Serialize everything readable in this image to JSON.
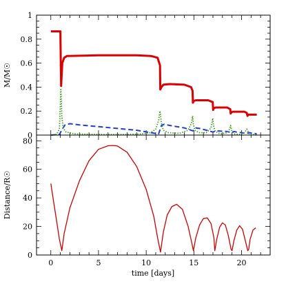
{
  "chart_data": [
    {
      "type": "line",
      "panel": "top",
      "ylabel": "M/M☉",
      "xlim": [
        -1.5,
        23
      ],
      "ylim": [
        0,
        1
      ],
      "yticks": [
        "0",
        "0.2",
        "0.4",
        "0.6",
        "0.8",
        "1"
      ],
      "grid": false,
      "legend": "none",
      "series": [
        {
          "color": "#dd0000",
          "style": "solid",
          "x": [
            0,
            1.0,
            1.01,
            1.08,
            1.2,
            1.4,
            1.7,
            5,
            9,
            10.5,
            11.2,
            11.45,
            11.48,
            11.6,
            11.8,
            12.5,
            14.0,
            14.7,
            14.86,
            14.9,
            15.0,
            15.2,
            16.5,
            16.98,
            17.02,
            17.1,
            17.3,
            18.5,
            18.82,
            18.86,
            18.95,
            19.1,
            20.3,
            20.55,
            20.62,
            20.7,
            21.6
          ],
          "y": [
            0.865,
            0.865,
            0.82,
            0.41,
            0.6,
            0.645,
            0.66,
            0.665,
            0.665,
            0.66,
            0.645,
            0.58,
            0.38,
            0.4,
            0.42,
            0.425,
            0.42,
            0.4,
            0.37,
            0.27,
            0.285,
            0.29,
            0.29,
            0.275,
            0.21,
            0.225,
            0.23,
            0.23,
            0.215,
            0.18,
            0.19,
            0.195,
            0.195,
            0.185,
            0.16,
            0.17,
            0.17
          ]
        },
        {
          "color": "#1f3fd8",
          "style": "dashed",
          "x": [
            0,
            0.9,
            1.2,
            1.5,
            2.0,
            3.0,
            5.0,
            7.0,
            9.0,
            10.5,
            11.3,
            11.6,
            11.9,
            12.5,
            14.0,
            14.9,
            15.2,
            15.6,
            16.6,
            17.0,
            17.3,
            18.5,
            18.9,
            19.2,
            19.5,
            20.5,
            20.8,
            21.6
          ],
          "y": [
            0.0,
            0.005,
            0.05,
            0.085,
            0.095,
            0.085,
            0.07,
            0.055,
            0.04,
            0.02,
            0.01,
            0.08,
            0.09,
            0.08,
            0.06,
            0.035,
            0.06,
            0.055,
            0.035,
            0.025,
            0.035,
            0.03,
            0.02,
            0.03,
            0.025,
            0.015,
            0.02,
            0.01
          ]
        },
        {
          "color": "#3ca01e",
          "style": "dotted",
          "x": [
            0,
            0.6,
            0.9,
            1.05,
            1.15,
            1.3,
            1.6,
            2.5,
            5,
            8,
            9.5,
            10.5,
            11.0,
            11.3,
            11.45,
            11.6,
            11.8,
            12.3,
            13.5,
            14.4,
            14.75,
            14.87,
            14.95,
            15.1,
            15.5,
            16.3,
            16.8,
            16.98,
            17.05,
            17.25,
            17.8,
            18.5,
            18.75,
            18.85,
            18.95,
            19.2,
            19.8,
            20.3,
            20.55,
            20.62,
            20.8,
            21.6
          ],
          "y": [
            0.0,
            0.005,
            0.05,
            0.38,
            0.16,
            0.06,
            0.025,
            0.01,
            0.005,
            0.005,
            0.01,
            0.02,
            0.05,
            0.12,
            0.2,
            0.1,
            0.04,
            0.02,
            0.015,
            0.04,
            0.1,
            0.16,
            0.09,
            0.04,
            0.02,
            0.02,
            0.06,
            0.14,
            0.08,
            0.03,
            0.01,
            0.02,
            0.05,
            0.08,
            0.04,
            0.01,
            0.005,
            0.02,
            0.05,
            0.04,
            0.01,
            0.0
          ]
        }
      ]
    },
    {
      "type": "line",
      "panel": "bottom",
      "xlabel": "time [days]",
      "ylabel": "Distance/R☉",
      "xlim": [
        -1.5,
        23
      ],
      "ylim": [
        0,
        84
      ],
      "xticks": [
        "0",
        "5",
        "10",
        "15",
        "20"
      ],
      "yticks": [
        "0",
        "20",
        "40",
        "60",
        "80"
      ],
      "grid": false,
      "legend": "none",
      "series": [
        {
          "color": "#cc0000",
          "style": "solid",
          "x": [
            0,
            0.3,
            0.6,
            0.9,
            1.15,
            1.4,
            2.0,
            3.0,
            4.0,
            5.0,
            6.0,
            6.5,
            7.0,
            8.0,
            9.0,
            10.0,
            10.8,
            11.2,
            11.5,
            11.8,
            12.2,
            12.7,
            13.2,
            13.8,
            14.4,
            14.8,
            14.95,
            15.2,
            15.6,
            16.0,
            16.4,
            16.8,
            17.1,
            17.2,
            17.4,
            17.7,
            18.0,
            18.3,
            18.6,
            18.9,
            19.0,
            19.2,
            19.5,
            19.8,
            20.1,
            20.4,
            20.65,
            20.75,
            20.9,
            21.2,
            21.5
          ],
          "y": [
            50,
            37,
            24,
            11,
            3,
            15,
            33,
            52,
            66,
            74,
            76.5,
            76.7,
            76.3,
            72,
            62,
            46,
            27,
            12,
            2,
            16,
            28,
            34,
            35.5,
            32,
            20,
            8,
            3,
            12,
            21,
            25.5,
            26,
            22,
            12,
            3,
            11,
            19.5,
            22.5,
            21,
            14,
            4,
            3,
            10,
            17.5,
            20.5,
            18,
            10,
            3,
            4,
            11,
            17.5,
            19
          ]
        }
      ]
    }
  ]
}
